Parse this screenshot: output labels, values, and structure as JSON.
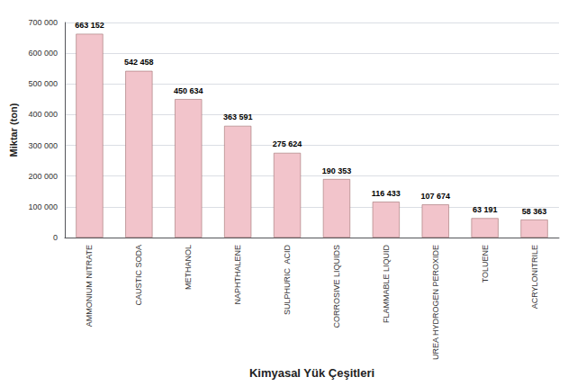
{
  "chart_data": {
    "type": "bar",
    "categories": [
      "AMMONIUM NITRATE",
      "CAUSTIC SODA",
      "METHANOL",
      "NAPHTHALENE",
      "SULPHURIC  ACID",
      "CORROSIVE LIQUIDS",
      "FLAMMABLE LIQUID",
      "UREA HYDROGEN PEROXIDE",
      "TOLUENE",
      "ACRYLONITRILE"
    ],
    "values": [
      663152,
      542458,
      450634,
      363591,
      275624,
      190353,
      116433,
      107674,
      63191,
      58363
    ],
    "value_labels": [
      "663 152",
      "542 458",
      "450 634",
      "363 591",
      "275 624",
      "190 353",
      "116 433",
      "107 674",
      "63 191",
      "58 363"
    ],
    "color": "#f2c4cb",
    "xlabel": "Kimyasal Yük Çeşitleri",
    "ylabel": "Miktar (ton)",
    "ylim": [
      0,
      700000
    ],
    "yticks": [
      0,
      {
        "value": 100000,
        "label": "100 000"
      },
      {
        "value": 200000,
        "label": "200 000"
      },
      {
        "value": 300000,
        "label": "300 000"
      },
      {
        "value": 400000,
        "label": "400 000"
      },
      {
        "value": 500000,
        "label": "500 000"
      },
      {
        "value": 600000,
        "label": "600 000"
      },
      {
        "value": 700000,
        "label": "700 000"
      }
    ],
    "grid": true,
    "data_labels": true
  }
}
